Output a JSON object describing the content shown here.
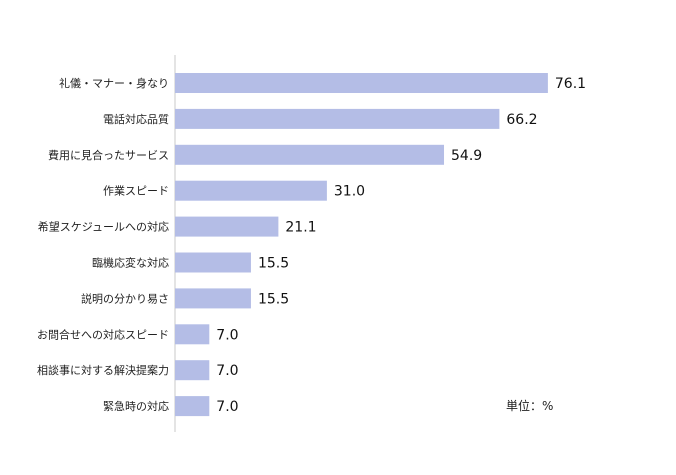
{
  "chart_data": {
    "type": "bar",
    "orientation": "horizontal",
    "categories": [
      "礼儀・マナー・身なり",
      "電話対応品質",
      "費用に見合ったサービス",
      "作業スピード",
      "希望スケジュールへの対応",
      "臨機応変な対応",
      "説明の分かり易さ",
      "お問合せへの対応スピード",
      "相談事に対する解決提案力",
      "緊急時の対応"
    ],
    "value_labels": [
      "76.1",
      "66.2",
      "54.9",
      "31.0",
      "21.1",
      "15.5",
      "15.5",
      "7.0",
      "7.0",
      "7.0"
    ],
    "series": [
      {
        "values": [
          76.1,
          66.2,
          54.9,
          31.0,
          21.1,
          15.5,
          15.5,
          7.0,
          7.0,
          7.0
        ]
      }
    ],
    "unit_label": "単位：%",
    "xlim": [
      0,
      100
    ],
    "grid": false,
    "legend": "none",
    "colors": {
      "bar": "#b4bde6",
      "axis": "#c8c8c8",
      "text": "#222222"
    }
  }
}
